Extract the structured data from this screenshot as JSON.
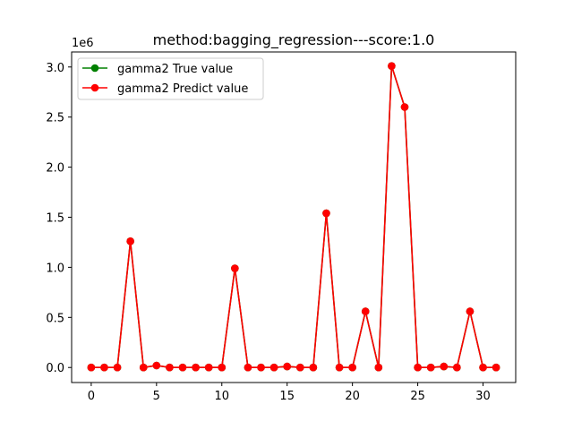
{
  "chart_data": {
    "type": "line",
    "title": "method:bagging_regression---score:1.0",
    "xlabel": "",
    "ylabel": "",
    "y_offset_label": "1e6",
    "xlim": [
      -1.5,
      32.5
    ],
    "ylim": [
      -0.15,
      3.15
    ],
    "x_ticks": [
      0,
      5,
      10,
      15,
      20,
      25,
      30
    ],
    "x_tick_labels": [
      "0",
      "5",
      "10",
      "15",
      "20",
      "25",
      "30"
    ],
    "y_ticks": [
      0.0,
      0.5,
      1.0,
      1.5,
      2.0,
      2.5,
      3.0
    ],
    "y_tick_labels": [
      "0.0",
      "0.5",
      "1.0",
      "1.5",
      "2.0",
      "2.5",
      "3.0"
    ],
    "grid": false,
    "legend_position": "top-left",
    "x": [
      0,
      1,
      2,
      3,
      4,
      5,
      6,
      7,
      8,
      9,
      10,
      11,
      12,
      13,
      14,
      15,
      16,
      17,
      18,
      19,
      20,
      21,
      22,
      23,
      24,
      25,
      26,
      27,
      28,
      29,
      30,
      31
    ],
    "series": [
      {
        "name": "gamma2 True value",
        "color": "#008000",
        "values": [
          0,
          0,
          0,
          1.26,
          0,
          0.02,
          0,
          0,
          0,
          0,
          0,
          0.99,
          0,
          0,
          0,
          0.01,
          0,
          0,
          1.54,
          0,
          0,
          0.56,
          0,
          3.01,
          2.6,
          0,
          0,
          0.01,
          0,
          0.56,
          0,
          0
        ]
      },
      {
        "name": "gamma2 Predict value",
        "color": "#ff0000",
        "values": [
          0,
          0,
          0,
          1.26,
          0,
          0.02,
          0,
          0,
          0,
          0,
          0,
          0.99,
          0,
          0,
          0,
          0.01,
          0,
          0,
          1.54,
          0,
          0,
          0.56,
          0,
          3.01,
          2.6,
          0,
          0,
          0.01,
          0,
          0.56,
          0,
          0
        ]
      }
    ]
  }
}
